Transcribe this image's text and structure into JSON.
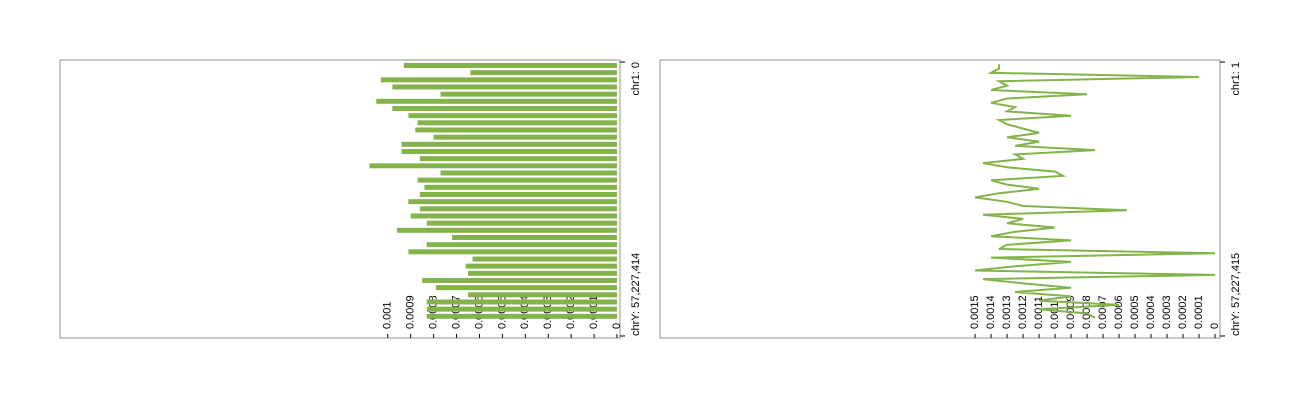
{
  "chart_data": [
    {
      "type": "bar",
      "color": "#83b34a",
      "range_labels": [
        "chr1: 0",
        "chrY: 57,227,414"
      ],
      "values": [
        0.00093,
        0.00064,
        0.00103,
        0.00098,
        0.00077,
        0.00105,
        0.00098,
        0.00091,
        0.00087,
        0.00088,
        0.0008,
        0.00094,
        0.00094,
        0.00086,
        0.00108,
        0.00077,
        0.00087,
        0.00084,
        0.00086,
        0.00091,
        0.00086,
        0.0009,
        0.00083,
        0.00096,
        0.00072,
        0.00083,
        0.00091,
        0.00063,
        0.00066,
        0.00065,
        0.00085,
        0.00079,
        0.00065,
        0.00083,
        0.00083,
        0.00083
      ],
      "xlim": [
        0.00243,
        0
      ],
      "xticks": [
        0,
        0.0001,
        0.0002,
        0.0003,
        0.0004,
        0.0005,
        0.0006,
        0.0007,
        0.0008,
        0.0009,
        0.001
      ]
    },
    {
      "type": "line",
      "color": "#83b34a",
      "range_labels": [
        "chr1: 1",
        "chrY: 57,227,415"
      ],
      "values": [
        0.00135,
        0.00135,
        0.0014,
        0.0001,
        0.00135,
        0.0013,
        0.0014,
        0.0008,
        0.0013,
        0.0014,
        0.00125,
        0.0013,
        0.0009,
        0.00135,
        0.0013,
        0.0012,
        0.0011,
        0.0013,
        0.0011,
        0.00125,
        0.00075,
        0.00125,
        0.0012,
        0.00145,
        0.0013,
        0.001,
        0.00095,
        0.0014,
        0.0013,
        0.0011,
        0.00135,
        0.0015,
        0.0013,
        0.0012,
        0.00055,
        0.00145,
        0.0012,
        0.0013,
        0.001,
        0.00125,
        0.0014,
        0.0009,
        0.0013,
        0.00135,
        0,
        0.0014,
        0.0009,
        0.00125,
        0.0015,
        0,
        0.00145,
        0.0012,
        0.0009,
        0.00125,
        0.0009,
        0.0011,
        0.0006,
        0.0011,
        0.0008,
        0.00075
      ],
      "xlim": [
        0.00347,
        0
      ],
      "xticks": [
        0,
        0.0001,
        0.0002,
        0.0003,
        0.0004,
        0.0005,
        0.0006,
        0.0007,
        0.0008,
        0.0009,
        0.001,
        0.0011,
        0.0012,
        0.0013,
        0.0014,
        0.0015
      ]
    }
  ]
}
